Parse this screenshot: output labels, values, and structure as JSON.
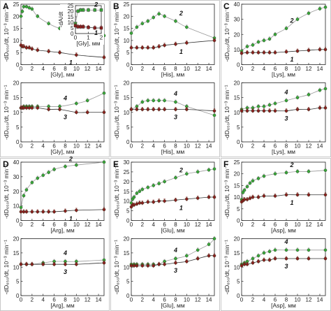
{
  "figure": {
    "panels": [
      {
        "letter": "A",
        "ylabel": "-dD₆₅₀/dt, 10⁻³ min⁻¹",
        "xlabel": "[Gly], мм",
        "inset": {
          "ylabel": "-dA/dt",
          "xlabel": "[Gly], мм"
        }
      },
      {
        "letter": "B",
        "ylabel": "-dD₆₅₀/dt, 10⁻³ min⁻¹",
        "xlabel": "[His], мм"
      },
      {
        "letter": "C",
        "ylabel": "-dD₆₅₀/dt, 10⁻³ min⁻¹",
        "xlabel": "[Lys], мм"
      },
      {
        "letter": "D",
        "ylabel": "-dD₆₅₀/dt, 10⁻³ min⁻¹",
        "xlabel": "[Arg], мм"
      },
      {
        "letter": "E",
        "ylabel": "-dD₆₅₀/dt, 10⁻³ min⁻¹",
        "xlabel": "[Glu], мм"
      },
      {
        "letter": "F",
        "ylabel": "-dD₆₅₀/dt, 10⁻³ min⁻¹",
        "xlabel": "[Asp], мм"
      }
    ]
  },
  "colors": {
    "green": "#3aa53a",
    "red": "#8b1f1f",
    "gray": "#9a9a9a",
    "dark": "#333333"
  },
  "chart_data": [
    {
      "id": "A-top",
      "type": "line",
      "xlim": [
        0,
        15
      ],
      "ylim": [
        0,
        25
      ],
      "xticks": [
        0,
        2,
        4,
        6,
        8,
        10,
        12,
        14
      ],
      "yticks": [
        0,
        5,
        10,
        15,
        20,
        25
      ],
      "series": [
        {
          "name": "2",
          "color": "green",
          "x": [
            0,
            0.25,
            0.5,
            1,
            1.5,
            2,
            3,
            5,
            7,
            10,
            15
          ],
          "y": [
            20,
            22,
            24,
            24,
            23.5,
            23,
            20,
            17,
            15,
            14,
            12
          ]
        },
        {
          "name": "1",
          "color": "red",
          "x": [
            0,
            0.25,
            0.5,
            1,
            1.5,
            2,
            3,
            5,
            7,
            10,
            15
          ],
          "y": [
            8,
            7.5,
            7.5,
            7,
            7,
            6.5,
            6,
            5.5,
            5,
            4,
            3
          ]
        }
      ]
    },
    {
      "id": "A-inset",
      "type": "line",
      "xlim": [
        0,
        2
      ],
      "ylim": [
        0,
        25
      ],
      "xticks": [
        0,
        1,
        2
      ],
      "yticks": [
        0,
        5,
        10,
        15,
        20,
        25
      ],
      "series": [
        {
          "name": "2",
          "color": "green",
          "x": [
            0,
            0.2,
            0.4,
            0.6,
            1,
            1.5,
            2
          ],
          "y": [
            9,
            20,
            21,
            21,
            21,
            21,
            21
          ]
        },
        {
          "name": "1",
          "color": "red",
          "x": [
            0,
            0.2,
            0.4,
            0.6,
            1,
            1.5,
            2
          ],
          "y": [
            7,
            6,
            6,
            6,
            5.5,
            5,
            5
          ]
        }
      ]
    },
    {
      "id": "A-bottom",
      "type": "line",
      "xlim": [
        0,
        15
      ],
      "ylim": [
        0,
        20
      ],
      "xticks": [
        0,
        2,
        4,
        6,
        8,
        10,
        12,
        14
      ],
      "yticks": [
        0,
        5,
        10,
        15,
        20
      ],
      "series": [
        {
          "name": "4",
          "color": "green",
          "x": [
            0,
            0.25,
            0.5,
            1,
            1.5,
            2,
            3,
            5,
            7,
            10,
            12,
            15
          ],
          "y": [
            11.5,
            11.5,
            12,
            12,
            12,
            12,
            12,
            12,
            12,
            13,
            14,
            16.5
          ]
        },
        {
          "name": "3",
          "color": "red",
          "x": [
            0,
            0.25,
            0.5,
            1,
            1.5,
            2,
            3,
            5,
            7,
            10,
            12,
            15
          ],
          "y": [
            11.5,
            11.5,
            11.5,
            11.5,
            11.5,
            11.5,
            11.5,
            11,
            11,
            10,
            10,
            10
          ]
        }
      ]
    },
    {
      "id": "B-top",
      "type": "line",
      "xlim": [
        0,
        15
      ],
      "ylim": [
        0,
        25
      ],
      "xticks": [
        0,
        2,
        4,
        6,
        8,
        10,
        12,
        14
      ],
      "yticks": [
        0,
        5,
        10,
        15,
        20,
        25
      ],
      "series": [
        {
          "name": "2",
          "color": "green",
          "x": [
            0,
            1,
            2,
            3,
            4,
            5,
            6,
            8,
            10,
            15
          ],
          "y": [
            13,
            15.5,
            17,
            18,
            19.5,
            21,
            20,
            18,
            15.5,
            11
          ]
        },
        {
          "name": "1",
          "color": "red",
          "x": [
            0,
            1,
            2,
            3,
            4,
            5,
            6,
            8,
            10,
            15
          ],
          "y": [
            7,
            7,
            7,
            7,
            7,
            7.5,
            8,
            8.5,
            9,
            10
          ]
        }
      ]
    },
    {
      "id": "B-bottom",
      "type": "line",
      "xlim": [
        0,
        15
      ],
      "ylim": [
        0,
        20
      ],
      "xticks": [
        0,
        2,
        4,
        6,
        8,
        10,
        12,
        14
      ],
      "yticks": [
        0,
        5,
        10,
        15,
        20
      ],
      "series": [
        {
          "name": "4",
          "color": "green",
          "x": [
            0,
            1,
            2,
            3,
            4,
            5,
            6,
            8,
            10,
            15
          ],
          "y": [
            11,
            12,
            13.5,
            14,
            14,
            14,
            14,
            13.5,
            12,
            9
          ]
        },
        {
          "name": "3",
          "color": "red",
          "x": [
            0,
            1,
            2,
            3,
            4,
            5,
            6,
            8,
            10,
            15
          ],
          "y": [
            11,
            11,
            11,
            11,
            11,
            11,
            11,
            11,
            11,
            10.5
          ]
        }
      ]
    },
    {
      "id": "C-top",
      "type": "line",
      "xlim": [
        0,
        15
      ],
      "ylim": [
        0,
        40
      ],
      "xticks": [
        0,
        2,
        4,
        6,
        8,
        10,
        12,
        14
      ],
      "yticks": [
        0,
        10,
        20,
        30,
        40
      ],
      "series": [
        {
          "name": "2",
          "color": "green",
          "x": [
            0,
            1,
            2,
            3,
            4,
            5,
            6,
            8,
            10,
            12,
            14,
            15
          ],
          "y": [
            9,
            12,
            13,
            15,
            16,
            17,
            20,
            24,
            30,
            34,
            37,
            38
          ]
        },
        {
          "name": "1",
          "color": "red",
          "x": [
            0,
            1,
            2,
            3,
            4,
            5,
            6,
            8,
            10,
            12,
            14,
            15
          ],
          "y": [
            7.5,
            8,
            8,
            8,
            8,
            8,
            8,
            8.5,
            9,
            9.5,
            10,
            10
          ]
        }
      ]
    },
    {
      "id": "C-bottom",
      "type": "line",
      "xlim": [
        0,
        15
      ],
      "ylim": [
        0,
        20
      ],
      "xticks": [
        0,
        2,
        4,
        6,
        8,
        10,
        12,
        14
      ],
      "yticks": [
        0,
        5,
        10,
        15,
        20
      ],
      "series": [
        {
          "name": "4",
          "color": "green",
          "x": [
            0,
            1,
            2,
            3,
            4,
            5,
            6,
            8,
            10,
            12,
            14,
            15
          ],
          "y": [
            11,
            11.5,
            11.5,
            12,
            12,
            12.5,
            13,
            14,
            15,
            16,
            17.5,
            18
          ]
        },
        {
          "name": "3",
          "color": "red",
          "x": [
            0,
            1,
            2,
            3,
            4,
            5,
            6,
            8,
            10,
            12,
            14,
            15
          ],
          "y": [
            10.5,
            10.5,
            10.5,
            10.5,
            10.5,
            10.5,
            10.5,
            10.5,
            11,
            11,
            11.5,
            11.5
          ]
        }
      ]
    },
    {
      "id": "D-top",
      "type": "line",
      "xlim": [
        0,
        15
      ],
      "ylim": [
        0,
        40
      ],
      "xticks": [
        0,
        2,
        4,
        6,
        8,
        10,
        12,
        14
      ],
      "yticks": [
        0,
        10,
        20,
        30,
        40
      ],
      "series": [
        {
          "name": "2",
          "color": "green",
          "x": [
            0,
            0.5,
            1,
            2,
            3,
            4,
            5,
            6,
            8,
            10,
            15
          ],
          "y": [
            9,
            17,
            21,
            26,
            29,
            31,
            33,
            35,
            37,
            38,
            40
          ]
        },
        {
          "name": "1",
          "color": "red",
          "x": [
            0,
            0.5,
            1,
            2,
            3,
            4,
            5,
            6,
            8,
            10,
            15
          ],
          "y": [
            6,
            6,
            6,
            6,
            6,
            6,
            6,
            6,
            6.5,
            7,
            7.5
          ]
        }
      ]
    },
    {
      "id": "D-bottom",
      "type": "line",
      "xlim": [
        0,
        15
      ],
      "ylim": [
        0,
        20
      ],
      "xticks": [
        0,
        2,
        4,
        6,
        8,
        10,
        12,
        14
      ],
      "yticks": [
        0,
        5,
        10,
        15,
        20
      ],
      "series": [
        {
          "name": "4",
          "color": "green",
          "x": [
            0,
            1,
            2,
            4,
            6,
            8,
            10,
            15
          ],
          "y": [
            11,
            11,
            11,
            11.5,
            12,
            12,
            12,
            12.5
          ]
        },
        {
          "name": "3",
          "color": "red",
          "x": [
            0,
            1,
            2,
            4,
            6,
            8,
            10,
            15
          ],
          "y": [
            11,
            11,
            11,
            11,
            11,
            11,
            11,
            11.5
          ]
        }
      ]
    },
    {
      "id": "E-top",
      "type": "line",
      "xlim": [
        0,
        15
      ],
      "ylim": [
        0,
        30
      ],
      "xticks": [
        0,
        2,
        4,
        6,
        8,
        10,
        12,
        14
      ],
      "yticks": [
        0,
        5,
        10,
        15,
        20,
        25,
        30
      ],
      "series": [
        {
          "name": "2",
          "color": "green",
          "x": [
            0,
            0.25,
            0.5,
            1,
            1.5,
            2,
            3,
            4,
            5,
            6,
            8,
            10,
            12,
            14,
            15
          ],
          "y": [
            9,
            11,
            12,
            14,
            15,
            16,
            17,
            18,
            19,
            20,
            22,
            24,
            25,
            26,
            26.5
          ]
        },
        {
          "name": "1",
          "color": "red",
          "x": [
            0,
            0.25,
            0.5,
            1,
            1.5,
            2,
            3,
            4,
            5,
            6,
            8,
            10,
            12,
            14,
            15
          ],
          "y": [
            7,
            8,
            8,
            8.5,
            9,
            9,
            9.5,
            9.5,
            10,
            10,
            10.5,
            11,
            11.5,
            12,
            12
          ]
        }
      ]
    },
    {
      "id": "E-bottom",
      "type": "line",
      "xlim": [
        0,
        15
      ],
      "ylim": [
        0,
        20
      ],
      "xticks": [
        0,
        2,
        4,
        6,
        8,
        10,
        12,
        14
      ],
      "yticks": [
        0,
        5,
        10,
        15,
        20
      ],
      "series": [
        {
          "name": "4",
          "color": "green",
          "x": [
            0,
            0.5,
            1,
            2,
            3,
            4,
            5,
            6,
            8,
            10,
            12,
            14,
            15
          ],
          "y": [
            11,
            11,
            11,
            11,
            11,
            11,
            11,
            12,
            13,
            14,
            16,
            18,
            20
          ]
        },
        {
          "name": "3",
          "color": "red",
          "x": [
            0,
            0.5,
            1,
            2,
            3,
            4,
            5,
            6,
            8,
            10,
            12,
            14,
            15
          ],
          "y": [
            10.5,
            10.5,
            10.5,
            10.5,
            10.5,
            10.5,
            11,
            11,
            11.5,
            12,
            13,
            14,
            14
          ]
        }
      ]
    },
    {
      "id": "F-top",
      "type": "line",
      "xlim": [
        0,
        15
      ],
      "ylim": [
        0,
        25
      ],
      "xticks": [
        0,
        2,
        4,
        6,
        8,
        10,
        12,
        14
      ],
      "yticks": [
        0,
        5,
        10,
        15,
        20,
        25
      ],
      "series": [
        {
          "name": "2",
          "color": "green",
          "x": [
            0,
            0.25,
            0.5,
            1,
            1.5,
            2,
            3,
            4,
            6,
            8,
            10,
            12,
            15
          ],
          "y": [
            9,
            12,
            13,
            14.5,
            16,
            17,
            18,
            19,
            20,
            20.5,
            21,
            21,
            21.5
          ]
        },
        {
          "name": "1",
          "color": "red",
          "x": [
            0,
            0.25,
            0.5,
            1,
            1.5,
            2,
            3,
            4,
            6,
            8,
            10,
            12,
            15
          ],
          "y": [
            8,
            8.5,
            9,
            9,
            9.5,
            10,
            10,
            10.5,
            10.5,
            11,
            11,
            11,
            11
          ]
        }
      ]
    },
    {
      "id": "F-bottom",
      "type": "line",
      "xlim": [
        0,
        15
      ],
      "ylim": [
        0,
        20
      ],
      "xticks": [
        0,
        2,
        4,
        6,
        8,
        10,
        12,
        14
      ],
      "yticks": [
        0,
        5,
        10,
        15,
        20
      ],
      "series": [
        {
          "name": "4",
          "color": "green",
          "x": [
            0,
            0.5,
            1,
            2,
            3,
            4,
            5,
            6,
            8,
            10,
            12,
            15
          ],
          "y": [
            11,
            11.5,
            12,
            13,
            14,
            15,
            15.5,
            16,
            16,
            16,
            16,
            16
          ]
        },
        {
          "name": "3",
          "color": "red",
          "x": [
            0,
            0.5,
            1,
            2,
            3,
            4,
            5,
            6,
            8,
            10,
            12,
            15
          ],
          "y": [
            10.5,
            11,
            11,
            11.5,
            12,
            12.5,
            12.5,
            13,
            13,
            13,
            13,
            13
          ]
        }
      ]
    }
  ]
}
